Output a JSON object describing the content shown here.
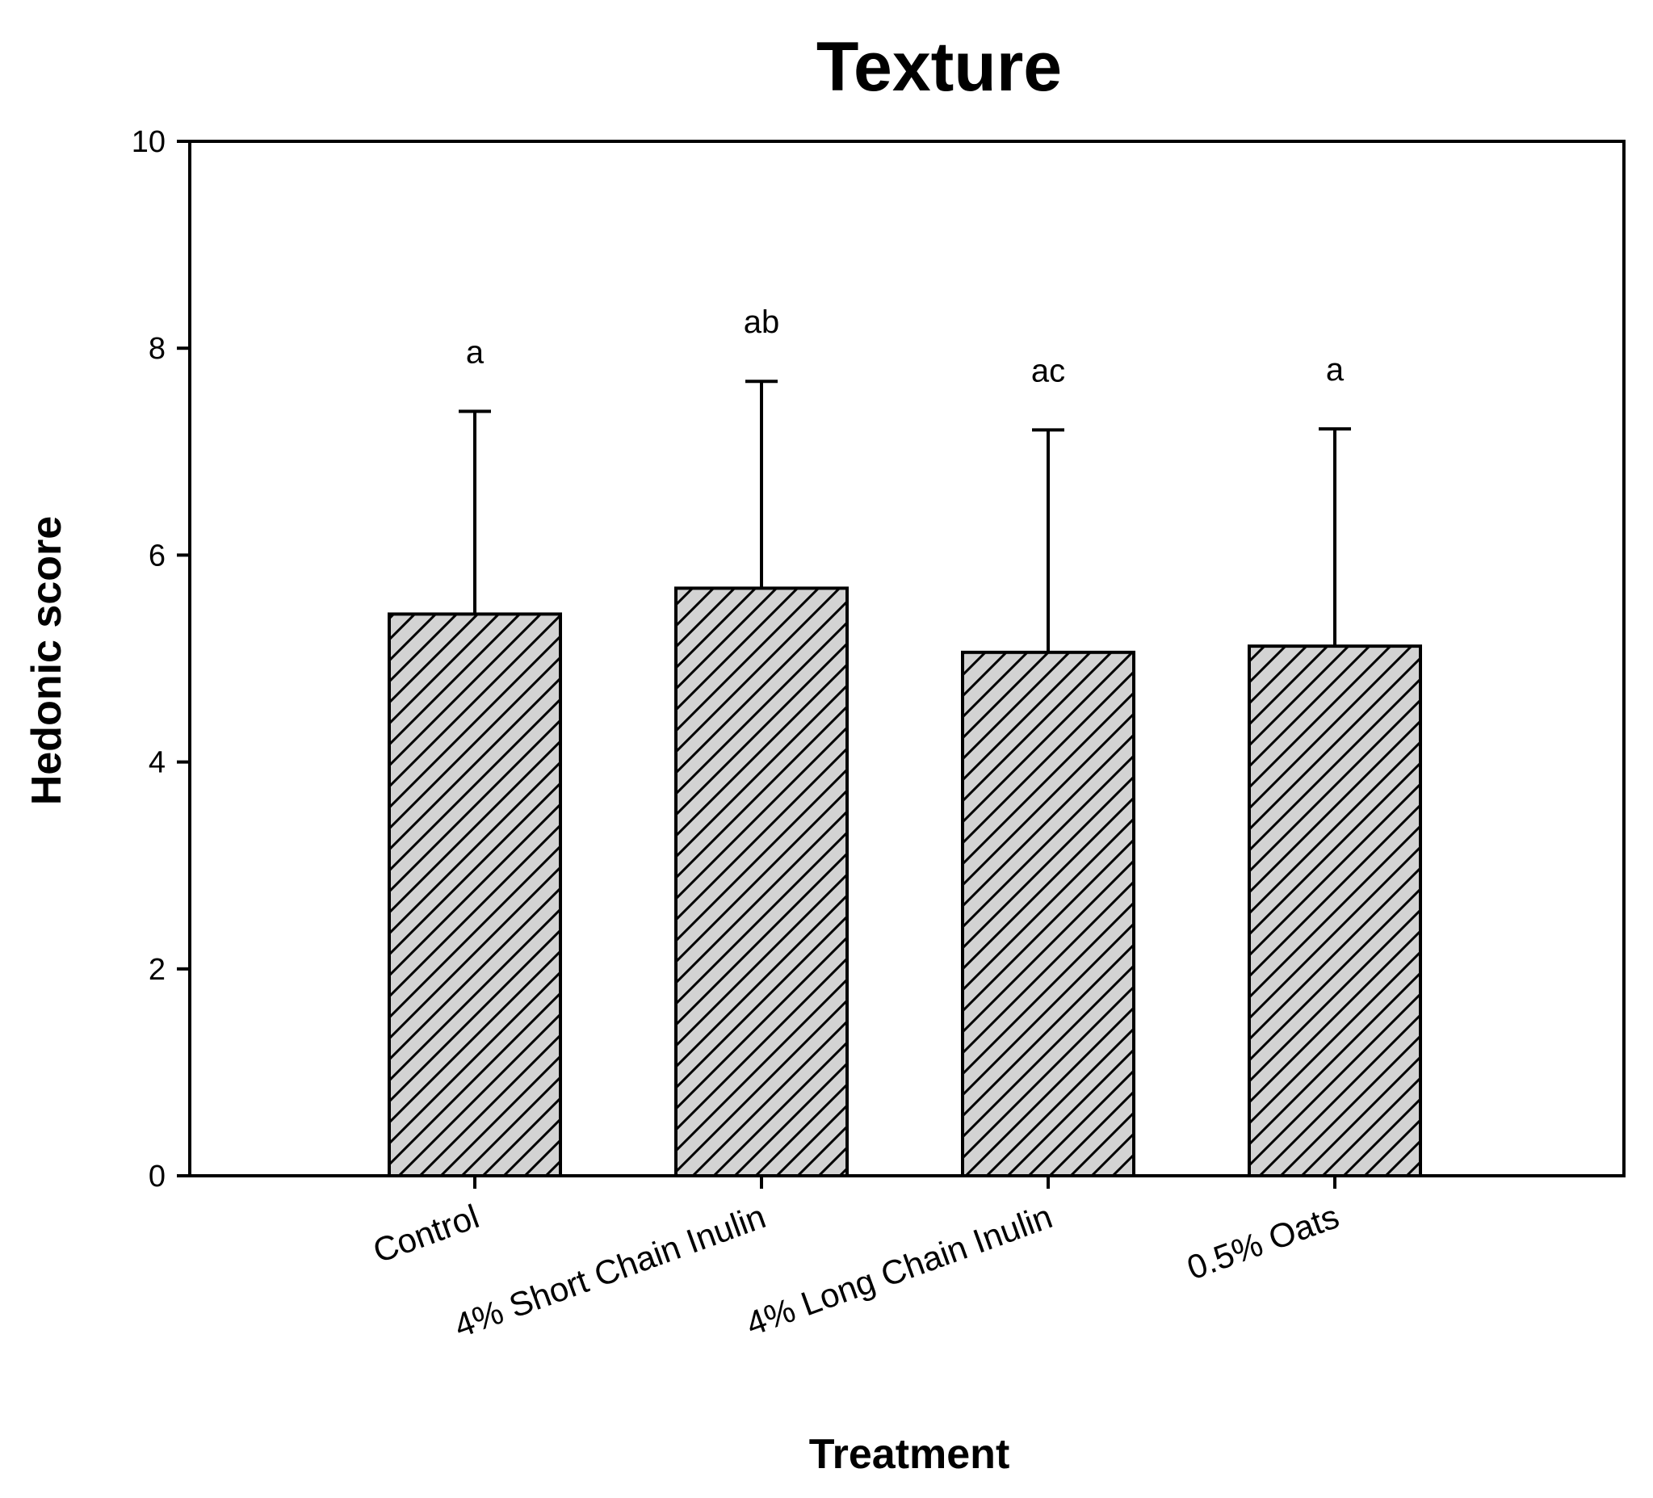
{
  "chart_data": {
    "type": "bar",
    "title": "Texture",
    "xlabel": "Treatment",
    "ylabel": "Hedonic score",
    "ylim": [
      0,
      10
    ],
    "yticks": [
      "0",
      "2",
      "4",
      "6",
      "8",
      "10"
    ],
    "categories": [
      "Control",
      "4% Short Chain Inulin",
      "4% Long Chain Inulin",
      "0.5% Oats"
    ],
    "values": [
      5.43,
      5.68,
      5.06,
      5.12
    ],
    "error_upper": [
      7.39,
      7.68,
      7.21,
      7.22
    ],
    "significance_labels": [
      "a",
      "ab",
      "ac",
      "a"
    ],
    "bar_fill": "#d3d3d3",
    "bar_pattern": "diagonal-hatch",
    "grid": false,
    "legend": "none"
  }
}
